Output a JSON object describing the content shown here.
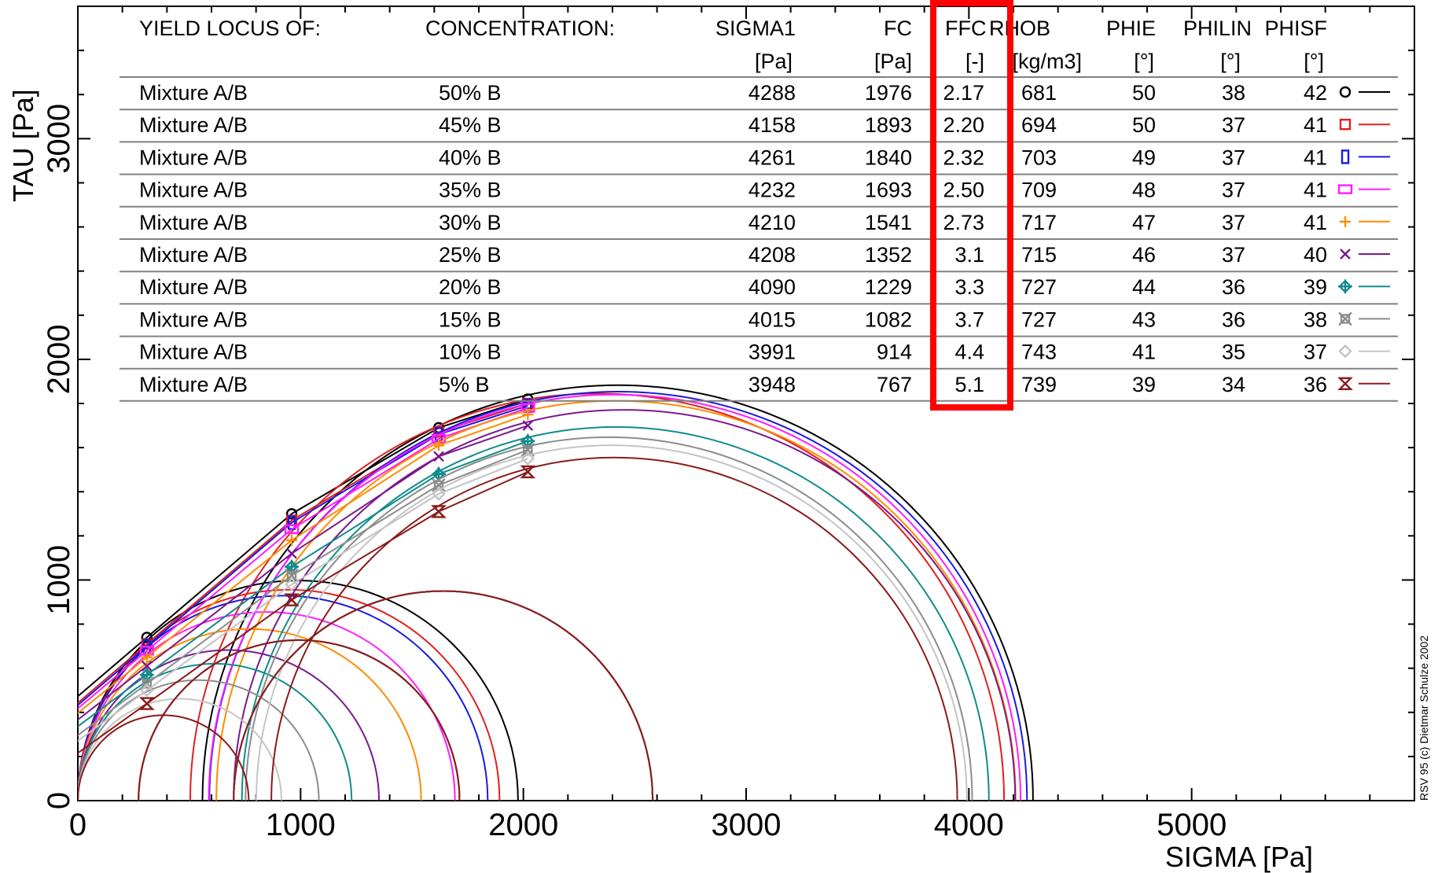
{
  "chart_data": {
    "type": "line",
    "xlabel": "SIGMA [Pa]",
    "ylabel": "TAU [Pa]",
    "xlim": [
      0,
      6000
    ],
    "ylim": [
      0,
      3600
    ],
    "x_ticks": [
      "0",
      "1000",
      "2000",
      "3000",
      "4000",
      "5000"
    ],
    "y_ticks": [
      "0",
      "1000",
      "2000",
      "3000"
    ],
    "copyright": "RSV 95 (c) Dietmar Schulze 2002",
    "highlight": {
      "column": "FFC",
      "color": "#ff0000"
    },
    "table_headers": [
      "YIELD LOCUS OF:",
      "CONCENTRATION:",
      "SIGMA1",
      "FC",
      "FFC",
      "RHOB",
      "PHIE",
      "PHILIN",
      "PHISF"
    ],
    "table_units": [
      "",
      "",
      "[Pa]",
      "[Pa]",
      "[-]",
      "[kg/m3]",
      "[°]",
      "[°]",
      "[°]"
    ],
    "series": [
      {
        "name": "Mixture A/B",
        "concentration": "50% B",
        "sigma1": "4288",
        "fc": "1976",
        "ffc": "2.17",
        "rhob": "681",
        "phie": "50",
        "philin": "38",
        "phisf": "42",
        "color": "#000000",
        "marker": "circle",
        "points": [
          [
            310,
            740
          ],
          [
            960,
            1300
          ],
          [
            1620,
            1690
          ],
          [
            2020,
            1820
          ]
        ]
      },
      {
        "name": "Mixture A/B",
        "concentration": "45% B",
        "sigma1": "4158",
        "fc": "1893",
        "ffc": "2.20",
        "rhob": "694",
        "phie": "50",
        "philin": "37",
        "phisf": "41",
        "color": "#e02020",
        "marker": "square",
        "points": [
          [
            310,
            710
          ],
          [
            960,
            1270
          ],
          [
            1620,
            1670
          ],
          [
            2020,
            1800
          ]
        ]
      },
      {
        "name": "Mixture A/B",
        "concentration": "40% B",
        "sigma1": "4261",
        "fc": "1840",
        "ffc": "2.32",
        "rhob": "703",
        "phie": "49",
        "philin": "37",
        "phisf": "41",
        "color": "#1a1ae0",
        "marker": "rect-tall",
        "points": [
          [
            310,
            700
          ],
          [
            960,
            1260
          ],
          [
            1620,
            1660
          ],
          [
            2020,
            1790
          ]
        ]
      },
      {
        "name": "Mixture A/B",
        "concentration": "35% B",
        "sigma1": "4232",
        "fc": "1693",
        "ffc": "2.50",
        "rhob": "709",
        "phie": "48",
        "philin": "37",
        "phisf": "41",
        "color": "#ff1cff",
        "marker": "rect-wide",
        "points": [
          [
            310,
            680
          ],
          [
            960,
            1230
          ],
          [
            1620,
            1640
          ],
          [
            2020,
            1780
          ]
        ]
      },
      {
        "name": "Mixture A/B",
        "concentration": "30% B",
        "sigma1": "4210",
        "fc": "1541",
        "ffc": "2.73",
        "rhob": "717",
        "phie": "47",
        "philin": "37",
        "phisf": "41",
        "color": "#ff8c00",
        "marker": "plus",
        "points": [
          [
            310,
            650
          ],
          [
            960,
            1180
          ],
          [
            1620,
            1610
          ],
          [
            2020,
            1750
          ]
        ]
      },
      {
        "name": "Mixture A/B",
        "concentration": "25% B",
        "sigma1": "4208",
        "fc": "1352",
        "ffc": "3.1",
        "rhob": "715",
        "phie": "46",
        "philin": "37",
        "phisf": "40",
        "color": "#7a1a8c",
        "marker": "cross",
        "points": [
          [
            310,
            610
          ],
          [
            960,
            1120
          ],
          [
            1620,
            1560
          ],
          [
            2020,
            1700
          ]
        ]
      },
      {
        "name": "Mixture A/B",
        "concentration": "20% B",
        "sigma1": "4090",
        "fc": "1229",
        "ffc": "3.3",
        "rhob": "727",
        "phie": "44",
        "philin": "36",
        "phisf": "39",
        "color": "#108c8c",
        "marker": "diamond-plus",
        "points": [
          [
            310,
            570
          ],
          [
            960,
            1060
          ],
          [
            1620,
            1480
          ],
          [
            2020,
            1630
          ]
        ]
      },
      {
        "name": "Mixture A/B",
        "concentration": "15% B",
        "sigma1": "4015",
        "fc": "1082",
        "ffc": "3.7",
        "rhob": "727",
        "phie": "43",
        "philin": "36",
        "phisf": "38",
        "color": "#8c8c8c",
        "marker": "boxed-x",
        "points": [
          [
            310,
            530
          ],
          [
            960,
            1020
          ],
          [
            1620,
            1430
          ],
          [
            2020,
            1590
          ]
        ]
      },
      {
        "name": "Mixture A/B",
        "concentration": "10% B",
        "sigma1": "3991",
        "fc": "914",
        "ffc": "4.4",
        "rhob": "743",
        "phie": "41",
        "philin": "35",
        "phisf": "37",
        "color": "#c4c4c4",
        "marker": "diamond",
        "points": [
          [
            310,
            500
          ],
          [
            960,
            980
          ],
          [
            1620,
            1390
          ],
          [
            2020,
            1550
          ]
        ]
      },
      {
        "name": "Mixture A/B",
        "concentration": "5% B",
        "sigma1": "3948",
        "fc": "767",
        "ffc": "5.1",
        "rhob": "739",
        "phie": "39",
        "philin": "34",
        "phisf": "36",
        "color": "#8b1a1a",
        "marker": "hourglass",
        "points": [
          [
            310,
            440
          ],
          [
            960,
            910
          ],
          [
            1620,
            1310
          ],
          [
            2020,
            1490
          ]
        ]
      }
    ]
  }
}
